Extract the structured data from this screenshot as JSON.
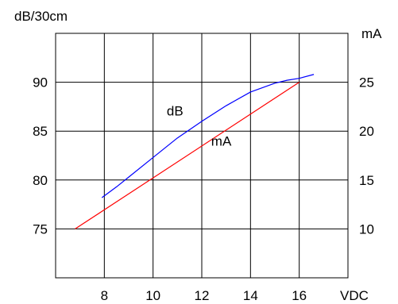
{
  "chart_data": {
    "type": "line",
    "title": "",
    "xlabel": "VDC",
    "ylabel_left": "dB/30cm",
    "ylabel_right": "mA",
    "xlim": [
      6,
      18
    ],
    "ylim_left": [
      70,
      95
    ],
    "ylim_right": [
      5,
      30
    ],
    "x_ticks": [
      8,
      10,
      12,
      14,
      16
    ],
    "y_left_ticks": [
      75,
      80,
      85,
      90
    ],
    "y_right_ticks": [
      10,
      15,
      20,
      25
    ],
    "grid": true,
    "colors": {
      "dB": "#0000ff",
      "mA": "#ff0000",
      "grid": "#000000",
      "frame": "#000000"
    },
    "series": [
      {
        "name": "dB",
        "axis": "left",
        "x": [
          7.9,
          8.5,
          9.0,
          10.0,
          11.0,
          12.0,
          13.0,
          14.0,
          15.0,
          15.5,
          16.0,
          16.6
        ],
        "y": [
          78.2,
          79.3,
          80.3,
          82.3,
          84.3,
          86.0,
          87.6,
          89.0,
          89.9,
          90.2,
          90.4,
          90.8
        ]
      },
      {
        "name": "mA",
        "axis": "right",
        "x": [
          6.8,
          16.0
        ],
        "y": [
          10.0,
          25.0
        ]
      }
    ],
    "annotations": [
      {
        "text": "dB",
        "x": 10.9,
        "y_left": 86.6
      },
      {
        "text": "mA",
        "x": 12.8,
        "y_left": 83.5
      }
    ]
  }
}
